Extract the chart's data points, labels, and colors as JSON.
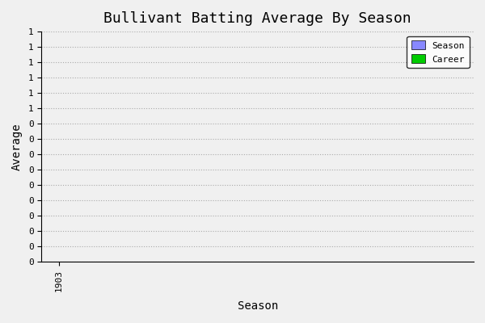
{
  "title": "Bullivant Batting Average By Season",
  "xlabel": "Season",
  "ylabel": "Average",
  "xlim": [
    1902.5,
    1915.0
  ],
  "ylim": [
    0.0,
    1.5
  ],
  "xticks": [
    1903
  ],
  "ytick_values": [
    0.0,
    0.1,
    0.2,
    0.3,
    0.4,
    0.5,
    0.6,
    0.7,
    0.8,
    0.9,
    1.0,
    1.1,
    1.2,
    1.3,
    1.4,
    1.5
  ],
  "ytick_labels": [
    "0",
    "0",
    "0",
    "0",
    "0",
    "0",
    "0",
    "0",
    "0",
    "0",
    "1",
    "1",
    "1",
    "1",
    "1",
    "1"
  ],
  "season_color": "#8888FF",
  "career_color": "#00CC00",
  "bg_color": "#F0F0F0",
  "plot_bg_color": "#F0F0F0",
  "grid_color": "#AAAAAA",
  "title_fontsize": 13,
  "label_fontsize": 10,
  "tick_fontsize": 8,
  "legend_labels": [
    "Season",
    "Career"
  ],
  "font_family": "monospace"
}
